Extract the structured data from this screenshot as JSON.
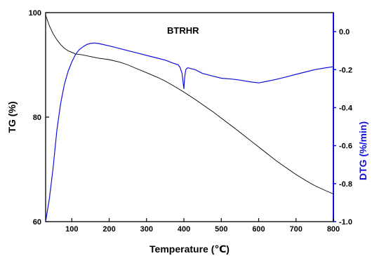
{
  "chart_data": {
    "type": "line",
    "title": "BTRHR",
    "xlabel": "Temperature (℃)",
    "ylabel_left": "TG (%)",
    "ylabel_right": "DTG (%/min)",
    "xlim": [
      30,
      800
    ],
    "ylim_left": [
      60,
      100
    ],
    "ylim_right": [
      -1.0,
      0.1
    ],
    "x_ticks": [
      "100",
      "200",
      "300",
      "400",
      "500",
      "600",
      "700",
      "800"
    ],
    "y_ticks_left": [
      "60",
      "80",
      "100"
    ],
    "y_ticks_right": [
      "0.0",
      "-0.2",
      "-0.4",
      "-0.6",
      "-0.8",
      "-1.0"
    ],
    "grid": false,
    "legend": "none",
    "colors": {
      "tg": "#000000",
      "dtg": "#1010dd",
      "right_axis": "#1010dd"
    },
    "series": [
      {
        "axis": "left",
        "x": [
          30,
          40,
          50,
          60,
          70,
          80,
          90,
          100,
          110,
          120,
          130,
          150,
          170,
          200,
          230,
          250,
          270,
          300,
          330,
          350,
          370,
          400,
          430,
          450,
          480,
          500,
          530,
          550,
          580,
          600,
          630,
          650,
          680,
          700,
          730,
          750,
          780,
          800
        ],
        "y": [
          99.5,
          97.5,
          96.0,
          94.8,
          93.9,
          93.2,
          92.7,
          92.4,
          92.1,
          92.0,
          91.9,
          91.6,
          91.3,
          91.0,
          90.5,
          90.0,
          89.4,
          88.5,
          87.6,
          86.9,
          86.1,
          84.8,
          83.4,
          82.4,
          80.9,
          79.8,
          78.2,
          77.1,
          75.4,
          74.3,
          72.6,
          71.5,
          70.0,
          69.0,
          67.7,
          66.9,
          65.9,
          65.3
        ]
      },
      {
        "axis": "right",
        "x": [
          30,
          40,
          50,
          60,
          70,
          80,
          90,
          100,
          110,
          120,
          130,
          140,
          150,
          160,
          170,
          180,
          200,
          220,
          250,
          280,
          300,
          330,
          350,
          370,
          385,
          390,
          395,
          398,
          400,
          402,
          405,
          410,
          430,
          450,
          480,
          500,
          530,
          550,
          580,
          600,
          620,
          650,
          680,
          700,
          730,
          750,
          780,
          800
        ],
        "y": [
          -1.0,
          -0.88,
          -0.72,
          -0.52,
          -0.38,
          -0.28,
          -0.21,
          -0.16,
          -0.12,
          -0.095,
          -0.08,
          -0.068,
          -0.062,
          -0.06,
          -0.062,
          -0.066,
          -0.075,
          -0.085,
          -0.1,
          -0.115,
          -0.125,
          -0.14,
          -0.15,
          -0.165,
          -0.175,
          -0.19,
          -0.22,
          -0.27,
          -0.3,
          -0.24,
          -0.2,
          -0.19,
          -0.2,
          -0.22,
          -0.235,
          -0.245,
          -0.25,
          -0.255,
          -0.265,
          -0.27,
          -0.262,
          -0.25,
          -0.235,
          -0.225,
          -0.21,
          -0.2,
          -0.19,
          -0.185
        ]
      }
    ]
  }
}
